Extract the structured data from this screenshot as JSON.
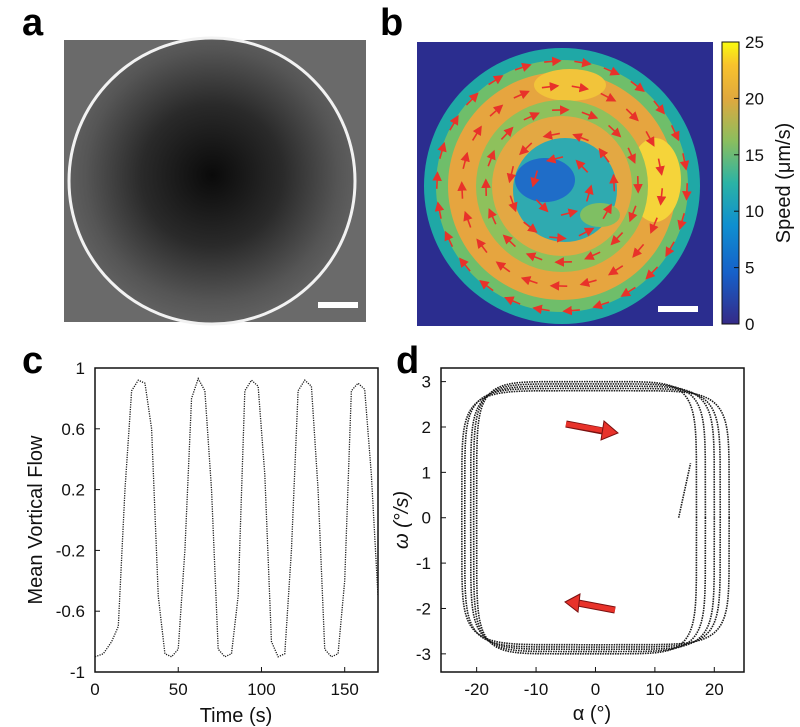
{
  "panels": {
    "a": "a",
    "b": "b",
    "c": "c",
    "d": "d"
  },
  "colorbar": {
    "label": "Speed (μm/s)",
    "ticks": [
      "0",
      "5",
      "10",
      "15",
      "20",
      "25"
    ],
    "range": [
      0,
      25
    ]
  },
  "colors": {
    "background_dark": "#2b2d8f",
    "arrow": "#e8322a",
    "trace": "#1a1a1a"
  },
  "chart_data": [
    {
      "type": "image",
      "panel": "a",
      "description_items": [
        "scale-bar"
      ]
    },
    {
      "type": "heatmap",
      "panel": "b",
      "colorbar_label": "Speed (μm/s)",
      "colorbar_range": [
        0,
        25
      ],
      "colorbar_ticks": [
        0,
        5,
        10,
        15,
        20,
        25
      ]
    },
    {
      "type": "line",
      "panel": "c",
      "xlabel": "Time (s)",
      "ylabel": "Mean Vortical Flow",
      "xlim": [
        0,
        170
      ],
      "ylim": [
        -1,
        1
      ],
      "xticks": [
        0,
        50,
        100,
        150
      ],
      "yticks": [
        1,
        0.6,
        0.2,
        -0.2,
        -0.6,
        -1
      ],
      "series": [
        {
          "x": [
            0,
            5,
            10,
            14,
            18,
            22,
            26,
            30,
            34,
            38,
            42,
            46,
            50,
            54,
            58,
            62,
            66,
            70,
            74,
            78,
            82,
            86,
            90,
            94,
            98,
            102,
            106,
            110,
            114,
            118,
            122,
            126,
            130,
            134,
            138,
            142,
            146,
            150,
            154,
            158,
            162,
            166,
            170
          ],
          "y": [
            -0.9,
            -0.88,
            -0.8,
            -0.7,
            0.2,
            0.85,
            0.92,
            0.9,
            0.6,
            -0.5,
            -0.88,
            -0.9,
            -0.85,
            -0.2,
            0.8,
            0.93,
            0.85,
            0.2,
            -0.85,
            -0.9,
            -0.88,
            -0.5,
            0.85,
            0.92,
            0.88,
            0.3,
            -0.8,
            -0.9,
            -0.88,
            -0.2,
            0.85,
            0.92,
            0.88,
            0.2,
            -0.85,
            -0.9,
            -0.88,
            -0.4,
            0.85,
            0.9,
            0.86,
            0.3,
            -0.5
          ]
        }
      ]
    },
    {
      "type": "scatter",
      "panel": "d",
      "xlabel": "α (°)",
      "ylabel": "ω (°/s)",
      "xlim": [
        -26,
        25
      ],
      "ylim": [
        -3.4,
        3.3
      ],
      "xticks": [
        -20,
        -10,
        0,
        10,
        20
      ],
      "yticks": [
        3,
        2,
        1,
        0,
        -1,
        -2,
        -3
      ],
      "loops": [
        {
          "halfwidth": 18.5,
          "center": -1.5,
          "amp": 3.0
        },
        {
          "halfwidth": 19.5,
          "center": -1.0,
          "amp": 2.95
        },
        {
          "halfwidth": 20.5,
          "center": -0.5,
          "amp": 2.9
        },
        {
          "halfwidth": 21.5,
          "center": -0.5,
          "amp": 2.85
        },
        {
          "halfwidth": 22.5,
          "center": 0.0,
          "amp": 2.8
        }
      ],
      "end_point": [
        14,
        0
      ]
    }
  ]
}
